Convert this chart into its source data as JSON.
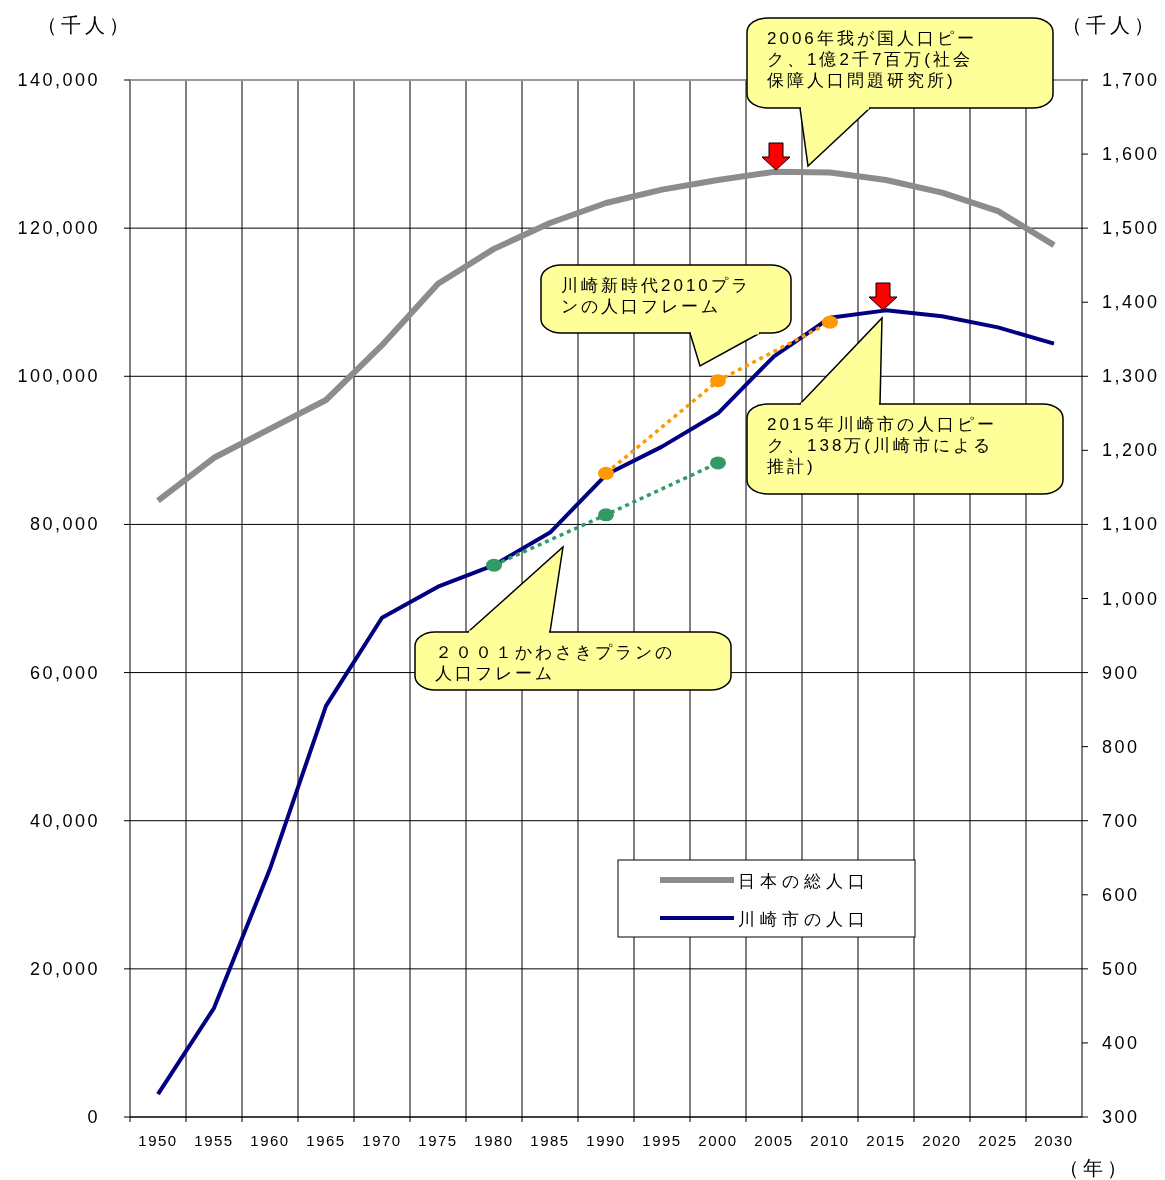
{
  "chart_data": {
    "type": "line",
    "ylabel": "（千人）",
    "y2label": "（千人）",
    "xlabel": "（年）",
    "categories": [
      "1950",
      "1955",
      "1960",
      "1965",
      "1970",
      "1975",
      "1980",
      "1985",
      "1990",
      "1995",
      "2000",
      "2005",
      "2010",
      "2015",
      "2020",
      "2025",
      "2030"
    ],
    "series": [
      {
        "name": "日本の総人口",
        "color": "#8c8c8c",
        "values": [
          83200,
          89000,
          92900,
          96800,
          104200,
          112500,
          117200,
          120700,
          123400,
          125200,
          126500,
          127600,
          127500,
          126500,
          124800,
          122300,
          117700
        ]
      },
      {
        "name": "川崎市の人口",
        "color": "#000080",
        "axis": "y2",
        "values": [
          331,
          447,
          635,
          855,
          974,
          1016,
          1045,
          1089,
          1167,
          1205,
          1250,
          1327,
          1379,
          1389,
          1381,
          1366,
          1344
        ]
      },
      {
        "color": "#ff9900",
        "axis": "y2",
        "line_style": "dotted",
        "marker": "circle",
        "values": [
          null,
          null,
          null,
          null,
          null,
          null,
          null,
          null,
          1169,
          null,
          1294,
          null,
          1373,
          null,
          null,
          null,
          null
        ]
      },
      {
        "color": "#339966",
        "axis": "y2",
        "line_style": "dotted",
        "marker": "circle",
        "values": [
          null,
          null,
          null,
          null,
          null,
          null,
          1045,
          null,
          1113,
          null,
          1183,
          null,
          null,
          null,
          null,
          null,
          null
        ]
      }
    ],
    "ylim": [
      0,
      140000
    ],
    "yticks": [
      0,
      {
        "value": 20000,
        "label": "20,000"
      },
      {
        "value": 40000,
        "label": "40,000"
      },
      {
        "value": 60000,
        "label": "60,000"
      },
      {
        "value": 80000,
        "label": "80,000"
      },
      {
        "value": 100000,
        "label": "100,000"
      },
      {
        "value": 120000,
        "label": "120,000"
      },
      {
        "value": 140000,
        "label": "140,000"
      }
    ],
    "y2lim": [
      300,
      1700
    ],
    "y2ticks": [
      300,
      400,
      500,
      600,
      700,
      800,
      900,
      {
        "value": 1000,
        "label": "1,000"
      },
      {
        "value": 1100,
        "label": "1,100"
      },
      {
        "value": 1200,
        "label": "1,200"
      },
      {
        "value": 1300,
        "label": "1,300"
      },
      {
        "value": 1400,
        "label": "1,400"
      },
      {
        "value": 1500,
        "label": "1,500"
      },
      {
        "value": 1600,
        "label": "1,600"
      },
      {
        "value": 1700,
        "label": "1,700"
      }
    ],
    "grid": true,
    "legend": "bottom right",
    "annotations": [
      "2006年我が国人口ピーク、1億2千7百万(社会保障人口問題研究所)",
      "川崎新時代2010プランの人口フレーム",
      "2015年川崎市の人口ピーク、138万(川崎市による推計)",
      "２００１かわさきプランの人口フレーム"
    ]
  }
}
